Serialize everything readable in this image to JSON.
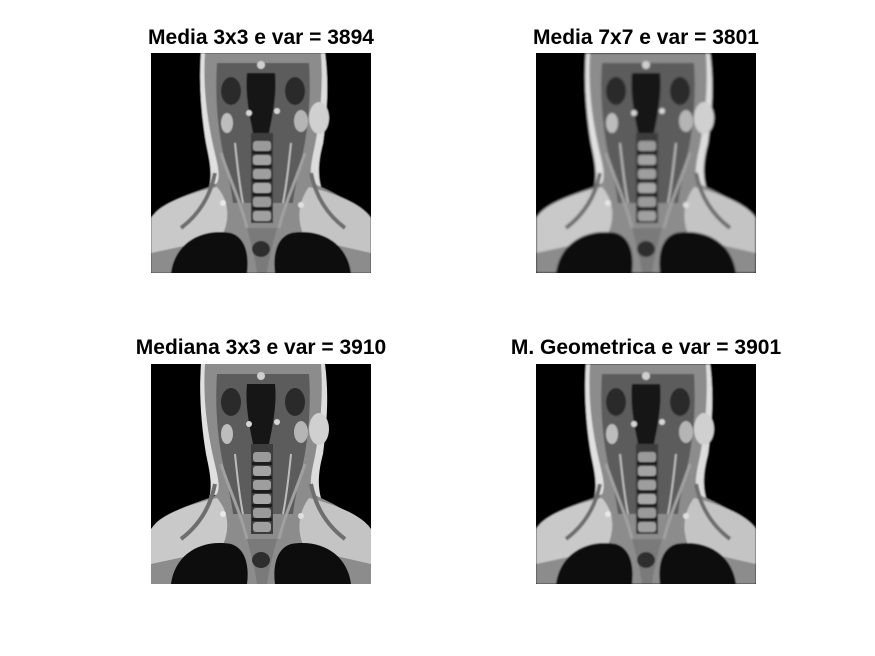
{
  "figure": {
    "panels": [
      {
        "title": "Media 3x3 e var = 3894",
        "image": "mri-coronal-neck",
        "blur": 0.5
      },
      {
        "title": "Media 7x7 e var = 3801",
        "image": "mri-coronal-neck",
        "blur": 1.1
      },
      {
        "title": "Mediana 3x3 e var = 3910",
        "image": "mri-coronal-neck",
        "blur": 0.3
      },
      {
        "title": "M. Geometrica e var = 3901",
        "image": "mri-coronal-neck",
        "blur": 0.7
      }
    ]
  }
}
